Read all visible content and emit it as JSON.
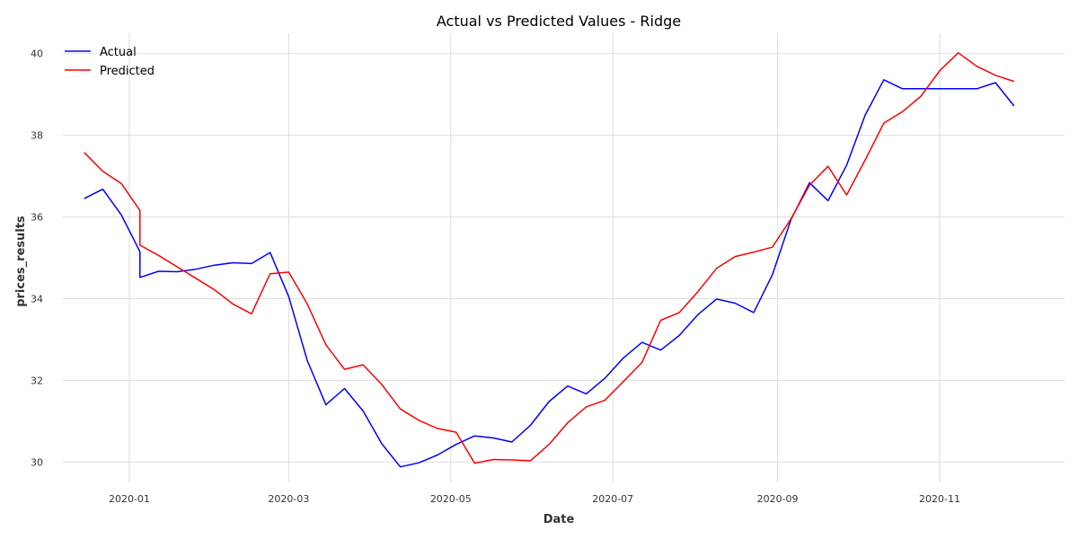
{
  "chart_data": {
    "type": "line",
    "title": "Actual vs Predicted Values - Ridge",
    "xlabel": "Date",
    "ylabel": "prices_results",
    "xlim": [
      "2019-12-07",
      "2020-12-18"
    ],
    "ylim": [
      29.5,
      40.5
    ],
    "grid": true,
    "legend": "top-left",
    "x_ticks": [
      "2020-01",
      "2020-03",
      "2020-05",
      "2020-07",
      "2020-09",
      "2020-11"
    ],
    "y_ticks": [
      30,
      32,
      34,
      36,
      38,
      40
    ],
    "series": [
      {
        "name": "Actual",
        "color": "#0000ff",
        "points": [
          [
            "2019-12-15",
            36.45
          ],
          [
            "2019-12-22",
            36.68
          ],
          [
            "2019-12-29",
            36.05
          ],
          [
            "2020-01-05",
            35.15
          ],
          [
            "2020-01-05",
            34.52
          ],
          [
            "2020-01-12",
            34.67
          ],
          [
            "2020-01-19",
            34.66
          ],
          [
            "2020-01-26",
            34.72
          ],
          [
            "2020-02-02",
            34.82
          ],
          [
            "2020-02-09",
            34.88
          ],
          [
            "2020-02-16",
            34.86
          ],
          [
            "2020-02-23",
            35.13
          ],
          [
            "2020-03-01",
            34.05
          ],
          [
            "2020-03-08",
            32.48
          ],
          [
            "2020-03-15",
            31.4
          ],
          [
            "2020-03-22",
            31.8
          ],
          [
            "2020-03-29",
            31.25
          ],
          [
            "2020-04-05",
            30.45
          ],
          [
            "2020-04-12",
            29.88
          ],
          [
            "2020-04-19",
            29.98
          ],
          [
            "2020-04-26",
            30.17
          ],
          [
            "2020-05-03",
            30.43
          ],
          [
            "2020-05-10",
            30.64
          ],
          [
            "2020-05-17",
            30.59
          ],
          [
            "2020-05-24",
            30.49
          ],
          [
            "2020-05-31",
            30.9
          ],
          [
            "2020-06-07",
            31.48
          ],
          [
            "2020-06-14",
            31.86
          ],
          [
            "2020-06-21",
            31.67
          ],
          [
            "2020-06-28",
            32.05
          ],
          [
            "2020-07-05",
            32.55
          ],
          [
            "2020-07-12",
            32.93
          ],
          [
            "2020-07-19",
            32.74
          ],
          [
            "2020-07-26",
            33.1
          ],
          [
            "2020-08-02",
            33.61
          ],
          [
            "2020-08-09",
            33.99
          ],
          [
            "2020-08-16",
            33.89
          ],
          [
            "2020-08-23",
            33.66
          ],
          [
            "2020-08-30",
            34.58
          ],
          [
            "2020-09-06",
            35.93
          ],
          [
            "2020-09-13",
            36.84
          ],
          [
            "2020-09-20",
            36.4
          ],
          [
            "2020-09-27",
            37.27
          ],
          [
            "2020-10-04",
            38.5
          ],
          [
            "2020-10-11",
            39.36
          ],
          [
            "2020-10-18",
            39.14
          ],
          [
            "2020-10-25",
            39.14
          ],
          [
            "2020-11-01",
            39.14
          ],
          [
            "2020-11-08",
            39.14
          ],
          [
            "2020-11-15",
            39.14
          ],
          [
            "2020-11-22",
            39.29
          ],
          [
            "2020-11-29",
            38.72
          ]
        ]
      },
      {
        "name": "Predicted",
        "color": "#ff0000",
        "points": [
          [
            "2019-12-15",
            37.58
          ],
          [
            "2019-12-22",
            37.12
          ],
          [
            "2019-12-29",
            36.82
          ],
          [
            "2020-01-05",
            36.16
          ],
          [
            "2020-01-05",
            35.31
          ],
          [
            "2020-01-12",
            35.06
          ],
          [
            "2020-01-19",
            34.78
          ],
          [
            "2020-01-26",
            34.5
          ],
          [
            "2020-02-02",
            34.22
          ],
          [
            "2020-02-09",
            33.87
          ],
          [
            "2020-02-16",
            33.63
          ],
          [
            "2020-02-23",
            34.61
          ],
          [
            "2020-03-01",
            34.65
          ],
          [
            "2020-03-08",
            33.87
          ],
          [
            "2020-03-15",
            32.87
          ],
          [
            "2020-03-22",
            32.27
          ],
          [
            "2020-03-29",
            32.38
          ],
          [
            "2020-04-05",
            31.9
          ],
          [
            "2020-04-12",
            31.3
          ],
          [
            "2020-04-19",
            31.02
          ],
          [
            "2020-04-26",
            30.82
          ],
          [
            "2020-05-03",
            30.73
          ],
          [
            "2020-05-10",
            29.97
          ],
          [
            "2020-05-17",
            30.06
          ],
          [
            "2020-05-24",
            30.05
          ],
          [
            "2020-05-31",
            30.03
          ],
          [
            "2020-06-07",
            30.43
          ],
          [
            "2020-06-14",
            30.96
          ],
          [
            "2020-06-21",
            31.35
          ],
          [
            "2020-06-28",
            31.51
          ],
          [
            "2020-07-05",
            31.97
          ],
          [
            "2020-07-12",
            32.44
          ],
          [
            "2020-07-19",
            33.47
          ],
          [
            "2020-07-26",
            33.66
          ],
          [
            "2020-08-02",
            34.17
          ],
          [
            "2020-08-09",
            34.74
          ],
          [
            "2020-08-16",
            35.03
          ],
          [
            "2020-08-23",
            35.14
          ],
          [
            "2020-08-30",
            35.26
          ],
          [
            "2020-09-06",
            35.95
          ],
          [
            "2020-09-13",
            36.78
          ],
          [
            "2020-09-20",
            37.24
          ],
          [
            "2020-09-27",
            36.54
          ],
          [
            "2020-10-04",
            37.4
          ],
          [
            "2020-10-11",
            38.3
          ],
          [
            "2020-10-18",
            38.58
          ],
          [
            "2020-10-25",
            38.96
          ],
          [
            "2020-11-01",
            39.58
          ],
          [
            "2020-11-08",
            40.02
          ],
          [
            "2020-11-15",
            39.69
          ],
          [
            "2020-11-22",
            39.47
          ],
          [
            "2020-11-29",
            39.32
          ]
        ]
      }
    ]
  }
}
